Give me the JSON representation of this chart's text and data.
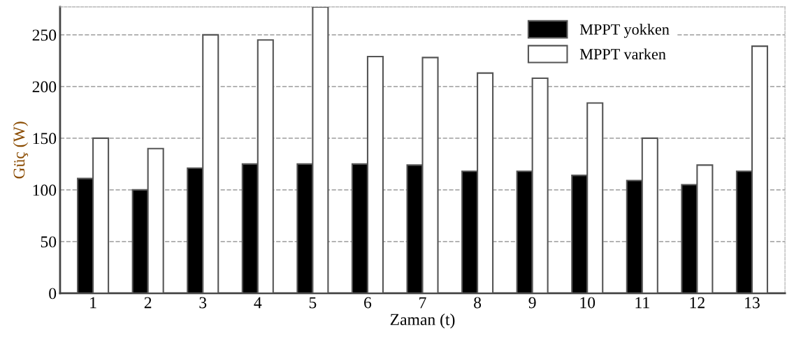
{
  "chart_data": {
    "type": "bar",
    "xlabel": "Zaman (t)",
    "ylabel": "Güç (W)",
    "categories": [
      "1",
      "2",
      "3",
      "4",
      "5",
      "6",
      "7",
      "8",
      "9",
      "10",
      "11",
      "12",
      "13"
    ],
    "series": [
      {
        "name": "MPPT yokken",
        "color": "#000000",
        "values": [
          111,
          100,
          121,
          125,
          125,
          125,
          124,
          118,
          118,
          114,
          109,
          105,
          118
        ]
      },
      {
        "name": "MPPT varken",
        "color": "#ffffff",
        "values": [
          150,
          140,
          250,
          245,
          277,
          229,
          228,
          213,
          208,
          184,
          150,
          124,
          239
        ]
      }
    ],
    "ylim": [
      0,
      277
    ],
    "yticks": [
      0,
      50,
      100,
      150,
      200,
      250
    ],
    "grid": "y",
    "legend": "top right"
  }
}
